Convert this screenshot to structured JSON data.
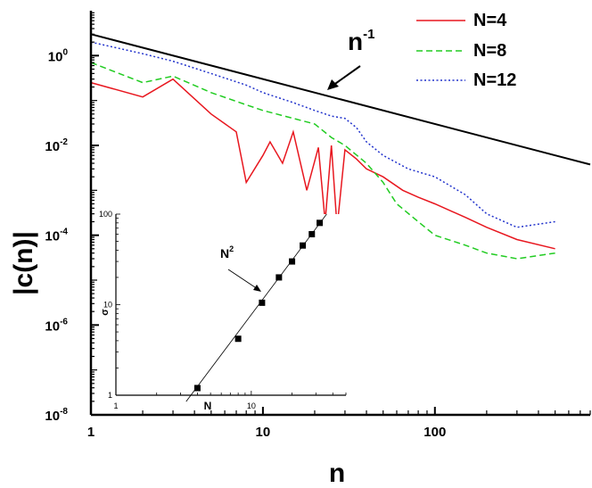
{
  "chart_data": [
    {
      "type": "line",
      "xlabel": "n",
      "ylabel": "|c(n)|",
      "xscale": "log",
      "yscale": "log",
      "xlim": [
        1,
        800
      ],
      "ylim": [
        1e-08,
        10
      ],
      "x_ticks": [
        {
          "value": 1,
          "label": "1"
        },
        {
          "value": 10,
          "label": "10"
        },
        {
          "value": 100,
          "label": "100"
        }
      ],
      "y_ticks": [
        {
          "value": 1,
          "label": "10",
          "exp": "0"
        },
        {
          "value": 0.01,
          "label": "10",
          "exp": "-2"
        },
        {
          "value": 0.0001,
          "label": "10",
          "exp": "-4"
        },
        {
          "value": 1e-06,
          "label": "10",
          "exp": "-6"
        },
        {
          "value": 1e-08,
          "label": "10",
          "exp": "-8"
        }
      ],
      "legend_position": "top-right",
      "series": [
        {
          "name": "N=4",
          "color": "#e8171f",
          "style": "solid",
          "x": [
            1,
            2,
            3,
            5,
            7,
            8,
            10,
            11,
            13,
            15,
            18,
            21,
            23,
            25,
            27,
            30,
            35,
            40,
            50,
            65,
            80,
            100,
            150,
            200,
            300,
            500
          ],
          "y": [
            0.25,
            0.12,
            0.3,
            0.05,
            0.02,
            0.0015,
            0.006,
            0.012,
            0.004,
            0.02,
            0.001,
            0.009,
            0.0002,
            0.01,
            0.00015,
            0.008,
            0.005,
            0.003,
            0.002,
            0.001,
            0.0007,
            0.0005,
            0.00025,
            0.00015,
            8e-05,
            5e-05
          ]
        },
        {
          "name": "N=8",
          "color": "#22cc22",
          "style": "dashed",
          "x": [
            1,
            2,
            3,
            5,
            8,
            10,
            15,
            20,
            25,
            30,
            40,
            50,
            60,
            80,
            100,
            150,
            200,
            300,
            500
          ],
          "y": [
            0.7,
            0.25,
            0.35,
            0.15,
            0.08,
            0.06,
            0.04,
            0.03,
            0.015,
            0.01,
            0.004,
            0.0015,
            0.0005,
            0.0002,
            0.0001,
            6e-05,
            4e-05,
            3e-05,
            4e-05
          ]
        },
        {
          "name": "N=12",
          "color": "#2233cc",
          "style": "dotted",
          "x": [
            1,
            2,
            3,
            5,
            8,
            10,
            15,
            20,
            25,
            30,
            35,
            40,
            50,
            70,
            100,
            150,
            200,
            300,
            500
          ],
          "y": [
            2.0,
            1.1,
            0.75,
            0.4,
            0.22,
            0.15,
            0.09,
            0.06,
            0.045,
            0.04,
            0.025,
            0.012,
            0.006,
            0.003,
            0.002,
            0.0008,
            0.0003,
            0.00015,
            0.0002
          ]
        },
        {
          "name": "n^-1",
          "color": "#000000",
          "style": "solid",
          "x": [
            1,
            800
          ],
          "y": [
            3,
            0.00375
          ]
        }
      ],
      "annotation": {
        "text": "n",
        "superscript": "-1"
      }
    },
    {
      "type": "scatter",
      "inset": true,
      "xlabel": "N",
      "ylabel": "σ",
      "xscale": "log",
      "yscale": "log",
      "xlim": [
        1,
        50
      ],
      "ylim": [
        1,
        100
      ],
      "x_ticks": [
        {
          "value": 1,
          "label": "1"
        },
        {
          "value": 10,
          "label": "10"
        }
      ],
      "y_ticks": [
        {
          "value": 1,
          "label": "1"
        },
        {
          "value": 10,
          "label": "10"
        },
        {
          "value": 100,
          "label": "100"
        }
      ],
      "points": {
        "x": [
          4,
          8,
          12,
          16,
          20,
          24,
          28,
          32
        ],
        "y": [
          1.2,
          4.2,
          10.5,
          20,
          30,
          45,
          60,
          80
        ]
      },
      "fit": {
        "x": [
          3.3,
          36
        ],
        "y": [
          0.85,
          100
        ]
      },
      "annotation": {
        "text": "N",
        "superscript": "2"
      }
    }
  ]
}
